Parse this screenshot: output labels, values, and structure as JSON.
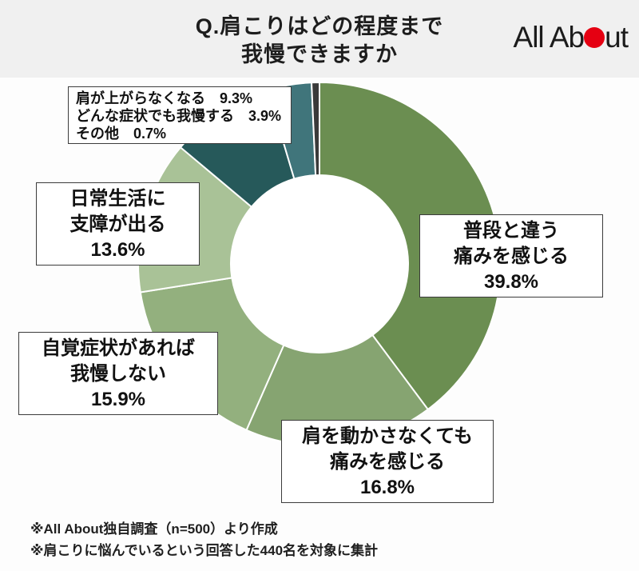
{
  "title": {
    "line1": "Q.肩こりはどの程度まで",
    "line2": "我慢できますか"
  },
  "logo": {
    "name": "All About",
    "text_before_dot": "All Ab",
    "text_after_dot": "ut",
    "dot_color": "#e50012"
  },
  "callouts": {
    "biggest": {
      "line1": "普段と違う",
      "line2": "痛みを感じる",
      "value": "39.8%"
    },
    "no_move": {
      "line1": "肩を動かさなくても",
      "line2": "痛みを感じる",
      "value": "16.8%"
    },
    "symptom": {
      "line1": "自覚症状があれば",
      "line2": "我慢しない",
      "value": "15.9%"
    },
    "daily": {
      "line1": "日常生活に",
      "line2": "支障が出る",
      "value": "13.6%"
    },
    "small_box": {
      "line1": "肩が上がらなくなる　9.3%",
      "line2": "どんな症状でも我慢する　3.9%",
      "line3": "その他　0.7%"
    }
  },
  "footnotes": {
    "line1": "※All About独自調査（n=500）より作成",
    "line2": "※肩こりに悩んでいるという回答した440名を対象に集計"
  },
  "chart_data": {
    "type": "pie",
    "subtype": "donut",
    "title": "Q.肩こりはどの程度まで我慢できますか",
    "labels": [
      "普段と違う痛みを感じる",
      "肩を動かさなくても痛みを感じる",
      "自覚症状があれば我慢しない",
      "日常生活に支障が出る",
      "肩が上がらなくなる",
      "どんな症状でも我慢する",
      "その他"
    ],
    "values": [
      39.8,
      16.8,
      15.9,
      13.6,
      9.3,
      3.9,
      0.7
    ],
    "unit": "%",
    "colors": [
      "#6b8e51",
      "#86a471",
      "#93b07e",
      "#a9c297",
      "#26595a",
      "#40757b",
      "#3a3a3a"
    ],
    "start_angle_deg_from_top": 0,
    "direction": "clockwise",
    "center": [
      400,
      330
    ],
    "outer_radius": 227,
    "inner_radius": 111,
    "hole_color": "#ffffff",
    "separator_color": "#ffffff",
    "legend_position": "none"
  }
}
